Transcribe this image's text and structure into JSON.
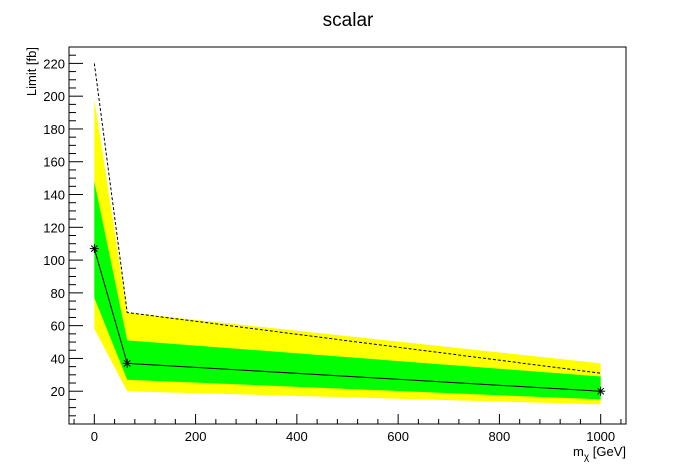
{
  "chart_data": {
    "type": "line",
    "title": "scalar",
    "xlabel": "m",
    "xlabel_sub": "χ",
    "xlabel_unit": " [GeV]",
    "ylabel": "Limit [fb]",
    "xlim": [
      -50,
      1050
    ],
    "ylim": [
      0,
      230
    ],
    "x_ticks": [
      0,
      200,
      400,
      600,
      800,
      1000
    ],
    "y_ticks": [
      20,
      40,
      60,
      80,
      100,
      120,
      140,
      160,
      180,
      200,
      220
    ],
    "x_tick_labels": [
      "0",
      "200",
      "400",
      "600",
      "800",
      "1000"
    ],
    "y_tick_labels": [
      "20",
      "40",
      "60",
      "80",
      "100",
      "120",
      "140",
      "160",
      "180",
      "200",
      "220"
    ],
    "x": [
      0,
      65,
      1000
    ],
    "series": [
      {
        "role": "band_2sigma",
        "lower": [
          58,
          20,
          12
        ],
        "upper": [
          198,
          68,
          37
        ],
        "color": "#ffff00"
      },
      {
        "role": "band_1sigma",
        "lower": [
          77,
          27,
          15
        ],
        "upper": [
          148,
          51,
          29
        ],
        "color": "#00ff00"
      },
      {
        "role": "expected",
        "values": [
          107,
          37,
          20
        ],
        "color": "#000000",
        "style": "solid",
        "marker": "star"
      },
      {
        "role": "observed",
        "values": [
          220,
          68,
          31
        ],
        "color": "#000000",
        "style": "dashed"
      }
    ],
    "grid": false,
    "legend": "none"
  }
}
